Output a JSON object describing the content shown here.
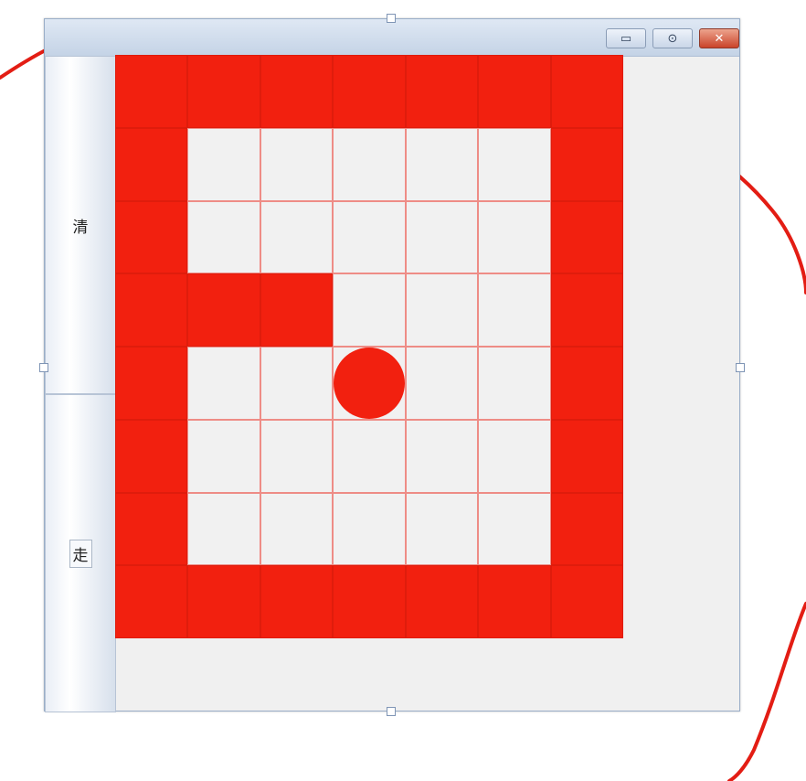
{
  "window": {
    "controls": {
      "minimize_glyph": "▭",
      "maximize_glyph": "⊙",
      "close_glyph": "✕"
    }
  },
  "side_buttons": {
    "clear_label": "清",
    "walk_label": "走"
  },
  "board": {
    "rows": 8,
    "cols": 7,
    "grid": [
      [
        1,
        1,
        1,
        1,
        1,
        1,
        1
      ],
      [
        1,
        0,
        0,
        0,
        0,
        0,
        1
      ],
      [
        1,
        0,
        0,
        0,
        0,
        0,
        1
      ],
      [
        1,
        1,
        1,
        0,
        0,
        0,
        1
      ],
      [
        1,
        0,
        0,
        0,
        0,
        0,
        1
      ],
      [
        1,
        0,
        0,
        0,
        0,
        0,
        1
      ],
      [
        1,
        0,
        0,
        0,
        0,
        0,
        1
      ],
      [
        1,
        1,
        1,
        1,
        1,
        1,
        1
      ]
    ],
    "ball_cell": {
      "row": 4,
      "col": 3
    },
    "wall_color": "#f2200f",
    "open_color": "#f1f1f1",
    "grid_line_color": "#ee8c86"
  },
  "annotations": {
    "stroke_color": "#e31d14",
    "arrow_color": "#f0969a"
  }
}
